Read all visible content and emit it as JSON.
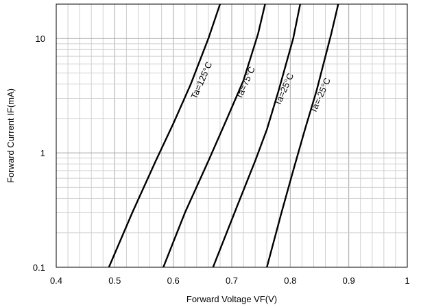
{
  "chart_data": {
    "type": "line",
    "title": "",
    "xlabel": "Forward Voltage  VF(V)",
    "ylabel": "Forward Current  IF(mA)",
    "xlim": [
      0.4,
      1.0
    ],
    "ylim": [
      0.1,
      20
    ],
    "yscale": "log",
    "grid": true,
    "x_ticks": [
      0.4,
      0.5,
      0.6,
      0.7,
      0.8,
      0.9,
      1.0
    ],
    "x_tick_labels": [
      "0.4",
      "0.5",
      "0.6",
      "0.7",
      "0.8",
      "0.9",
      "1"
    ],
    "y_ticks": [
      0.1,
      1,
      10
    ],
    "y_tick_labels": [
      "0.1",
      "1",
      "10"
    ],
    "series": [
      {
        "name": "Ta=125°C",
        "x": [
          0.49,
          0.53,
          0.57,
          0.6,
          0.63,
          0.66,
          0.68
        ],
        "y": [
          0.1,
          0.3,
          0.85,
          1.8,
          4.0,
          10.0,
          20.0
        ]
      },
      {
        "name": "Ta=75°C",
        "x": [
          0.583,
          0.62,
          0.66,
          0.69,
          0.72,
          0.745,
          0.757
        ],
        "y": [
          0.1,
          0.3,
          0.85,
          1.9,
          4.3,
          11.0,
          20.0
        ]
      },
      {
        "name": "Ta=25°C",
        "x": [
          0.668,
          0.71,
          0.74,
          0.76,
          0.78,
          0.805,
          0.817
        ],
        "y": [
          0.1,
          0.35,
          0.85,
          1.6,
          3.5,
          10.0,
          20.0
        ]
      },
      {
        "name": "Ta=-25°C",
        "x": [
          0.76,
          0.785,
          0.805,
          0.825,
          0.845,
          0.87,
          0.882
        ],
        "y": [
          0.1,
          0.3,
          0.7,
          1.6,
          3.5,
          11.0,
          20.0
        ]
      }
    ]
  }
}
